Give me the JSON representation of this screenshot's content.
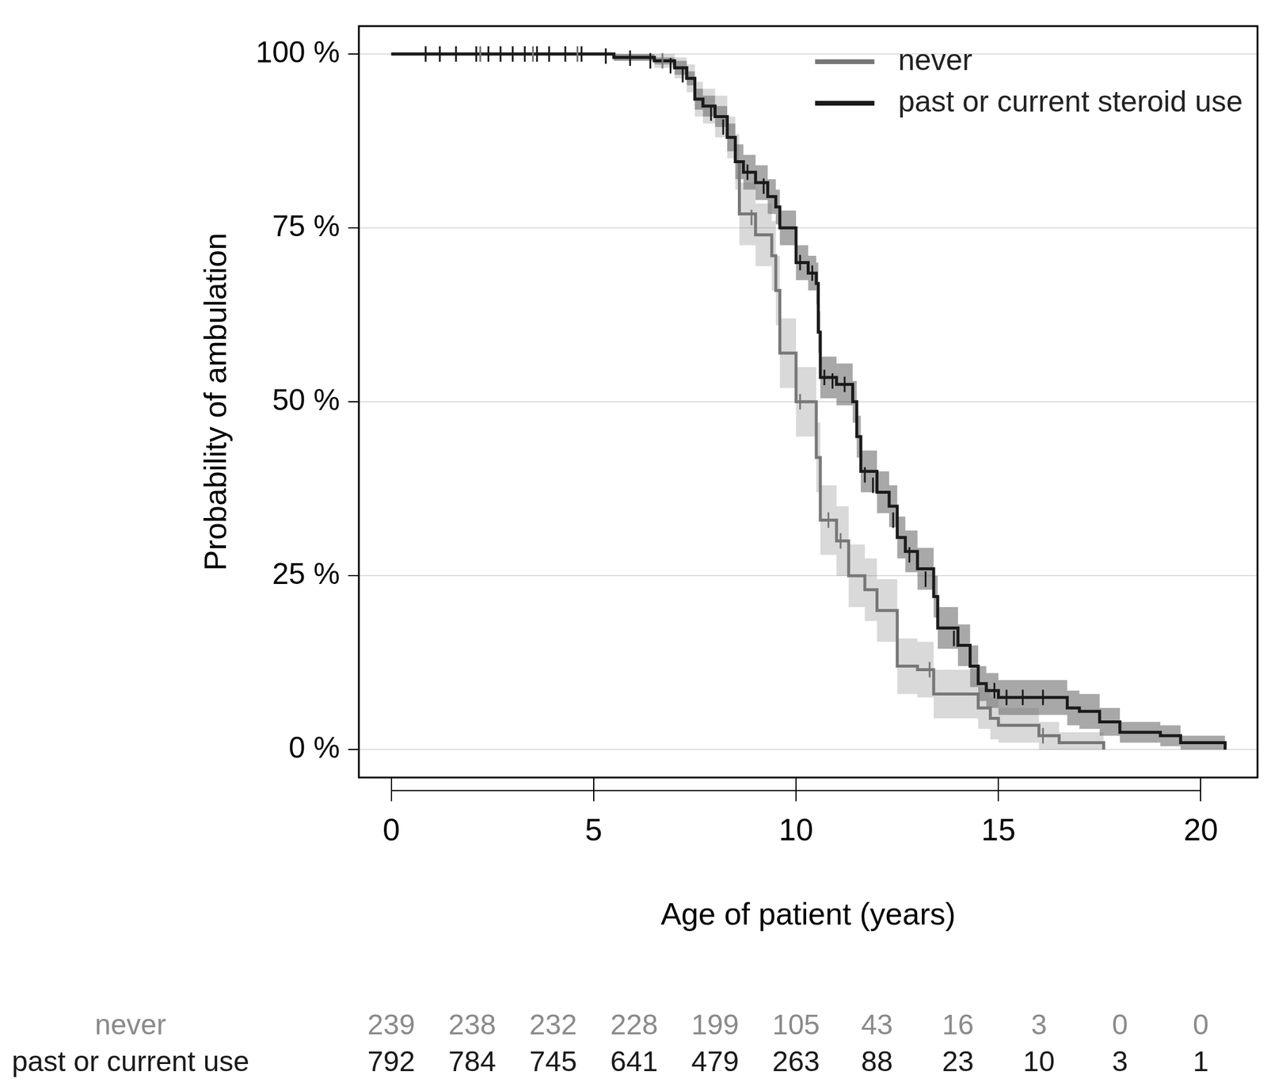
{
  "chart_data": {
    "type": "line",
    "x_label": "Age of patient (years)",
    "y_label": "Probability of ambulation",
    "xlim": [
      -0.8,
      21.4
    ],
    "ylim": [
      -4,
      104
    ],
    "xticks": [
      0,
      5,
      10,
      15,
      20
    ],
    "yticks": [
      {
        "value": 0,
        "label": "0 %"
      },
      {
        "value": 25,
        "label": "25 %"
      },
      {
        "value": 50,
        "label": "50 %"
      },
      {
        "value": 75,
        "label": "75 %"
      },
      {
        "value": 100,
        "label": "100 %"
      }
    ],
    "grid": "y",
    "legend": "top right",
    "line_style": "stepped",
    "series": [
      {
        "name": "never",
        "color": "#777777",
        "x": [
          0,
          5.5,
          6.5,
          7.0,
          7.3,
          7.5,
          7.7,
          8.0,
          8.3,
          8.5,
          8.6,
          9.0,
          9.4,
          9.5,
          9.6,
          10.0,
          10.5,
          10.6,
          11.0,
          11.3,
          11.7,
          12.0,
          12.5,
          13.0,
          13.4,
          14.5,
          14.8,
          15.0,
          16.0,
          16.5,
          17.6
        ],
        "values": [
          100,
          99.5,
          99,
          98,
          96.5,
          93.5,
          92.5,
          91,
          88,
          84.5,
          77,
          74,
          71,
          66,
          57,
          50,
          42,
          33,
          30,
          25,
          23,
          20,
          12,
          11.5,
          8,
          6,
          4.5,
          3.5,
          2,
          1,
          0
        ],
        "lower": [
          100,
          99,
          98,
          96.5,
          94.5,
          91,
          90,
          88,
          85,
          80.5,
          72.5,
          69.5,
          66,
          61,
          52,
          45,
          37,
          28,
          25,
          20.5,
          18.5,
          15.5,
          8,
          7.5,
          4.5,
          3,
          1.5,
          1,
          0,
          0,
          0
        ],
        "upper": [
          100,
          100,
          100,
          99.5,
          98.5,
          96,
          95,
          94,
          91,
          88.5,
          81.5,
          78.5,
          76,
          71,
          62,
          55,
          47,
          38,
          35,
          29.5,
          27.5,
          24.5,
          16,
          15.5,
          11.5,
          9,
          7.5,
          6,
          4,
          2.5,
          0
        ],
        "censored": [
          [
            2.2,
            100
          ],
          [
            3.5,
            100
          ],
          [
            4.6,
            100
          ],
          [
            6.7,
            99
          ],
          [
            8.9,
            76.5
          ],
          [
            10.1,
            50
          ],
          [
            10.8,
            33
          ],
          [
            11.1,
            30
          ],
          [
            13.3,
            11.5
          ],
          [
            16.1,
            2
          ]
        ]
      },
      {
        "name": "past or current steroid use",
        "color": "#1a1a1a",
        "x": [
          0,
          5.5,
          6.5,
          7.0,
          7.3,
          7.5,
          7.7,
          8.0,
          8.3,
          8.5,
          8.7,
          9.0,
          9.3,
          9.5,
          9.6,
          10.0,
          10.3,
          10.5,
          10.55,
          10.6,
          11.0,
          11.4,
          11.5,
          11.6,
          12.0,
          12.3,
          12.5,
          12.7,
          13.0,
          13.4,
          13.5,
          14.0,
          14.3,
          14.5,
          14.7,
          15.0,
          16.7,
          17.0,
          17.5,
          18.0,
          19.0,
          19.5,
          20.6
        ],
        "values": [
          100,
          99.5,
          99,
          98,
          96.5,
          93.5,
          92.5,
          91,
          88,
          84.5,
          83,
          81.5,
          79.5,
          78,
          75,
          70,
          68.5,
          67,
          60,
          53.5,
          52.5,
          50,
          45,
          40,
          37,
          35,
          30.5,
          28.5,
          26,
          22,
          17.5,
          15,
          12,
          9.5,
          8.5,
          7.5,
          6,
          5.5,
          4,
          2.5,
          2,
          1,
          0
        ],
        "lower": [
          100,
          99,
          98.5,
          97,
          95.5,
          92,
          91,
          89.5,
          86,
          82,
          80.5,
          79,
          77,
          75.5,
          72.5,
          67.5,
          66,
          64,
          57,
          50.5,
          49.5,
          47,
          42,
          37,
          34,
          32,
          27.5,
          25.5,
          23,
          19,
          14.5,
          12,
          9,
          7,
          6,
          5,
          3.5,
          3,
          2,
          1,
          0.5,
          0,
          0
        ],
        "upper": [
          100,
          100,
          99.5,
          99,
          97.5,
          95,
          94,
          92.5,
          90,
          87,
          85.5,
          84,
          82,
          80.5,
          77.5,
          72.5,
          71,
          70,
          63,
          56.5,
          55.5,
          53,
          48,
          43,
          40,
          38,
          33.5,
          31.5,
          29,
          25,
          20.5,
          18,
          15,
          12,
          11,
          10,
          8.5,
          8,
          6,
          4,
          3.5,
          2,
          0
        ],
        "censored": [
          [
            0.85,
            100
          ],
          [
            1.2,
            100
          ],
          [
            1.6,
            100
          ],
          [
            2.1,
            100
          ],
          [
            2.4,
            100
          ],
          [
            2.7,
            100
          ],
          [
            3.0,
            100
          ],
          [
            3.3,
            100
          ],
          [
            3.6,
            100
          ],
          [
            3.9,
            100
          ],
          [
            4.3,
            100
          ],
          [
            4.7,
            100
          ],
          [
            5.3,
            99.7
          ],
          [
            5.9,
            99.4
          ],
          [
            6.4,
            99
          ],
          [
            6.9,
            98.3
          ],
          [
            7.2,
            97
          ],
          [
            7.9,
            91.5
          ],
          [
            8.2,
            89.5
          ],
          [
            8.8,
            83
          ],
          [
            9.2,
            81
          ],
          [
            10.1,
            70
          ],
          [
            10.4,
            68.5
          ],
          [
            10.7,
            53.5
          ],
          [
            10.9,
            53
          ],
          [
            11.2,
            52.5
          ],
          [
            11.7,
            39.5
          ],
          [
            11.9,
            38
          ],
          [
            12.4,
            33
          ],
          [
            12.8,
            28
          ],
          [
            13.2,
            24.5
          ],
          [
            13.9,
            16
          ],
          [
            14.9,
            8.5
          ],
          [
            15.2,
            7.5
          ],
          [
            15.6,
            7.5
          ],
          [
            16.1,
            7.5
          ]
        ]
      }
    ],
    "risk_table": {
      "x": [
        0,
        2,
        4,
        6,
        8,
        10,
        12,
        14,
        16,
        18,
        20
      ],
      "rows": [
        {
          "name": "never",
          "values": [
            239,
            238,
            232,
            228,
            199,
            105,
            43,
            16,
            3,
            0,
            0
          ]
        },
        {
          "name": "past or current use",
          "values": [
            792,
            784,
            745,
            641,
            479,
            263,
            88,
            23,
            10,
            3,
            1
          ]
        }
      ]
    }
  }
}
